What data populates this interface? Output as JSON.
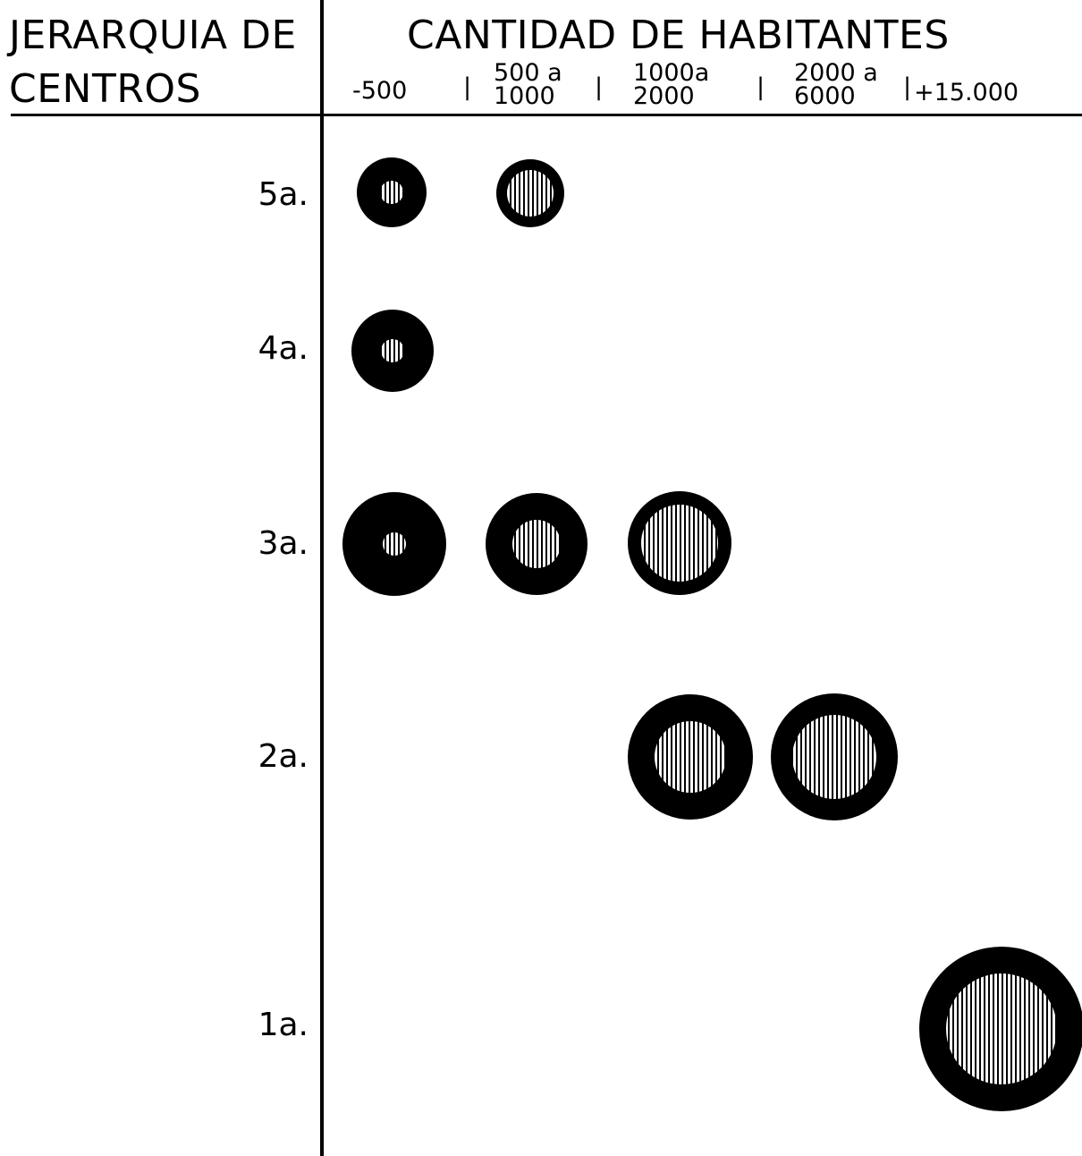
{
  "header": {
    "row_header_line1": "JERARQUIA DE",
    "row_header_line2": "CENTROS",
    "column_header": "CANTIDAD DE HABITANTES"
  },
  "columns": [
    {
      "line1": "-500",
      "line2": ""
    },
    {
      "line1": "500 a",
      "line2": "1000"
    },
    {
      "line1": "1000a",
      "line2": "2000"
    },
    {
      "line1": "2000 a",
      "line2": "6000"
    },
    {
      "line1": "+15.000",
      "line2": ""
    }
  ],
  "rows": [
    {
      "label": "5a."
    },
    {
      "label": "4a."
    },
    {
      "label": "3a."
    },
    {
      "label": "2a."
    },
    {
      "label": "1a."
    }
  ],
  "symbols": [
    {
      "row": 0,
      "col": 0
    },
    {
      "row": 0,
      "col": 1
    },
    {
      "row": 1,
      "col": 0
    },
    {
      "row": 2,
      "col": 0
    },
    {
      "row": 2,
      "col": 1
    },
    {
      "row": 2,
      "col": 2
    },
    {
      "row": 3,
      "col": 2
    },
    {
      "row": 3,
      "col": 3
    },
    {
      "row": 4,
      "col": 4
    }
  ],
  "colors": {
    "ink": "#000000",
    "paper": "#ffffff"
  }
}
